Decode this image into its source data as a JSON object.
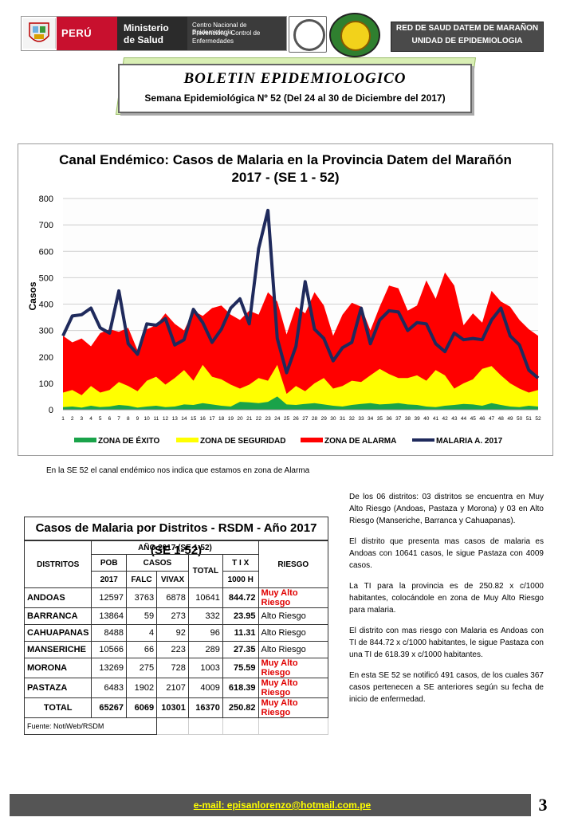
{
  "header": {
    "country": "PERÚ",
    "ministry": [
      "Ministerio",
      "de Salud"
    ],
    "center": [
      "Centro Nacional de Epidemiología,",
      "Prevención y Control de",
      "Enfermedades"
    ],
    "red_lines": [
      "RED DE SAUD DATEM DE MARAÑON",
      "UNIDAD DE EPIDEMIOLOGIA"
    ]
  },
  "banner": {
    "title": "BOLETIN EPIDEMIOLOGICO",
    "subtitle": "Semana Epidemiológica Nº 52 (Del 24 al 30 de Diciembre del 2017)"
  },
  "chart_data": {
    "type": "area",
    "title": "Canal Endémico: Casos de Malaria en la Provincia Datem del Marañón",
    "subtitle": "2017 - (SE 1 - 52)",
    "ylabel": "Casos",
    "ylim": [
      0,
      800
    ],
    "yticks": [
      0,
      100,
      200,
      300,
      400,
      500,
      600,
      700,
      800
    ],
    "x": [
      1,
      2,
      3,
      4,
      5,
      6,
      7,
      8,
      9,
      10,
      11,
      12,
      13,
      14,
      15,
      16,
      17,
      18,
      19,
      20,
      21,
      22,
      23,
      24,
      25,
      26,
      27,
      28,
      29,
      30,
      31,
      32,
      33,
      34,
      35,
      36,
      37,
      38,
      39,
      40,
      41,
      42,
      43,
      44,
      45,
      46,
      47,
      48,
      49,
      50,
      51,
      52
    ],
    "grid": true,
    "legend_position": "bottom",
    "series": [
      {
        "name": "ZONA DE ÉXITO",
        "color": "#1aa34a",
        "values": [
          10,
          12,
          8,
          15,
          10,
          12,
          18,
          15,
          8,
          12,
          15,
          10,
          12,
          20,
          18,
          25,
          20,
          15,
          12,
          30,
          28,
          25,
          30,
          50,
          20,
          18,
          22,
          25,
          20,
          15,
          12,
          18,
          22,
          25,
          20,
          22,
          25,
          20,
          18,
          12,
          10,
          15,
          18,
          22,
          20,
          15,
          25,
          18,
          12,
          10,
          15,
          12
        ]
      },
      {
        "name": "ZONA DE SEGURIDAD",
        "color": "#ffff00",
        "values": [
          65,
          75,
          55,
          90,
          65,
          75,
          105,
          90,
          70,
          110,
          125,
          95,
          120,
          150,
          110,
          170,
          125,
          115,
          95,
          80,
          95,
          120,
          110,
          170,
          60,
          90,
          70,
          100,
          120,
          80,
          90,
          110,
          105,
          130,
          155,
          135,
          120,
          120,
          130,
          110,
          150,
          130,
          80,
          100,
          115,
          155,
          165,
          130,
          100,
          80,
          65,
          75
        ]
      },
      {
        "name": "ZONA DE ALARMA",
        "color": "#ff0000",
        "values": [
          280,
          255,
          270,
          240,
          290,
          305,
          295,
          310,
          225,
          305,
          320,
          365,
          325,
          300,
          375,
          355,
          385,
          395,
          360,
          340,
          375,
          360,
          445,
          410,
          285,
          390,
          365,
          445,
          395,
          280,
          360,
          405,
          390,
          300,
          390,
          470,
          460,
          375,
          395,
          490,
          420,
          520,
          470,
          320,
          365,
          330,
          450,
          410,
          390,
          340,
          305,
          280
        ]
      },
      {
        "name": "MALARIA A. 2017",
        "color": "#1f2a5c",
        "values": [
          280,
          355,
          360,
          385,
          310,
          290,
          450,
          250,
          210,
          325,
          320,
          345,
          245,
          265,
          380,
          330,
          255,
          305,
          385,
          420,
          325,
          610,
          755,
          270,
          140,
          240,
          485,
          305,
          270,
          185,
          235,
          255,
          385,
          250,
          340,
          375,
          370,
          300,
          330,
          325,
          250,
          220,
          290,
          265,
          270,
          265,
          340,
          385,
          280,
          245,
          150,
          120
        ]
      }
    ]
  },
  "note": "En la SE 52  el canal endémico nos indica que estamos en zona de Alarma",
  "table": {
    "title": "Casos de Malaria por Distritos - RSDM - Año 2017 (SE 1-52)",
    "h_distritos": "DISTRITOS",
    "h_year": "AÑO 2017 (SE 1-52)",
    "h_riesgo": "RIESGO",
    "h_pob": "POB",
    "h_pob2": "2017",
    "h_casos": "CASOS",
    "h_total": "TOTAL",
    "h_tix": "T I X",
    "h_tix2": "1000 H",
    "h_falc": "FALC",
    "h_vivax": "VIVAX",
    "rows": [
      {
        "d": "ANDOAS",
        "pob": "12597",
        "falc": "3763",
        "vivax": "6878",
        "total": "10641",
        "tix": "844.72",
        "risk": "Muy Alto Riesgo",
        "high": true
      },
      {
        "d": "BARRANCA",
        "pob": "13864",
        "falc": "59",
        "vivax": "273",
        "total": "332",
        "tix": "23.95",
        "risk": "Alto Riesgo",
        "high": false
      },
      {
        "d": "CAHUAPANAS",
        "pob": "8488",
        "falc": "4",
        "vivax": "92",
        "total": "96",
        "tix": "11.31",
        "risk": "Alto Riesgo",
        "high": false
      },
      {
        "d": "MANSERICHE",
        "pob": "10566",
        "falc": "66",
        "vivax": "223",
        "total": "289",
        "tix": "27.35",
        "risk": "Alto Riesgo",
        "high": false
      },
      {
        "d": "MORONA",
        "pob": "13269",
        "falc": "275",
        "vivax": "728",
        "total": "1003",
        "tix": "75.59",
        "risk": "Muy Alto Riesgo",
        "high": true
      },
      {
        "d": "PASTAZA",
        "pob": "6483",
        "falc": "1902",
        "vivax": "2107",
        "total": "4009",
        "tix": "618.39",
        "risk": "Muy Alto Riesgo",
        "high": true
      }
    ],
    "total_row": {
      "d": "TOTAL",
      "pob": "65267",
      "falc": "6069",
      "vivax": "10301",
      "total": "16370",
      "tix": "250.82",
      "risk": "Muy Alto Riesgo"
    },
    "source": "Fuente: NotiWeb/RSDM"
  },
  "paragraphs": [
    "De los 06 distritos: 03 distritos se encuentra en Muy Alto Riesgo (Andoas, Pastaza y Morona) y 03 en Alto Riesgo (Manseriche, Barranca y Cahuapanas).",
    "El distrito que presenta mas casos de malaria es Andoas con 10641 casos, le sigue Pastaza con 4009 casos.",
    "La TI para la provincia es de 250.82 x c/1000 habitantes, colocándole en zona de Muy Alto Riesgo para malaria.",
    "El distrito con mas riesgo con Malaria es Andoas con TI de 844.72 x c/1000 habitantes, le sigue Pastaza con una TI de 618.39 x c/1000 habitantes.",
    "En esta SE 52 se notificó 491 casos, de los cuales 367 casos pertenecen a SE anteriores según su fecha de inicio de enfermedad."
  ],
  "footer": {
    "email": "e-mail: episanlorenzo@hotmail.com.pe",
    "page": "3"
  }
}
